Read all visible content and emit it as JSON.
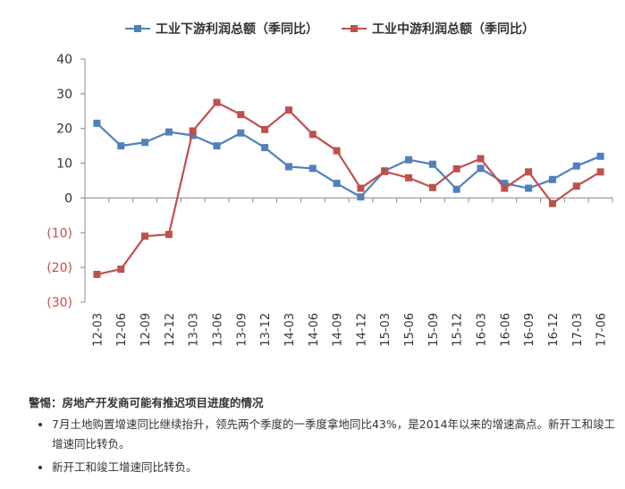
{
  "chart_data": {
    "type": "line",
    "categories": [
      "12-03",
      "12-06",
      "12-09",
      "12-12",
      "13-03",
      "13-06",
      "13-09",
      "13-12",
      "14-03",
      "14-06",
      "14-09",
      "14-12",
      "15-03",
      "15-06",
      "15-09",
      "15-12",
      "16-03",
      "16-06",
      "16-09",
      "16-12",
      "17-03",
      "17-06"
    ],
    "series": [
      {
        "name": "工业下游利润总额（季同比）",
        "color": "#4f81bd",
        "marker": "square",
        "values": [
          21.5,
          15,
          16,
          19,
          18,
          15,
          18.7,
          14.5,
          9,
          8.5,
          4.2,
          0.3,
          7.8,
          11,
          9.7,
          2.5,
          8.5,
          4.2,
          2.8,
          5.3,
          9.2,
          12
        ]
      },
      {
        "name": "工业中游利润总额（季同比）",
        "color": "#c0504d",
        "marker": "square",
        "values": [
          -22,
          -20.5,
          -11,
          -10.5,
          19.3,
          27.5,
          24,
          19.7,
          25.3,
          18.3,
          13.6,
          2.8,
          7.6,
          5.8,
          3,
          8.4,
          11.3,
          2.8,
          7.5,
          -1.6,
          3.4,
          7.5
        ]
      }
    ],
    "ylim": [
      -30,
      40
    ],
    "yticks": [
      40,
      30,
      20,
      10,
      0,
      -10,
      -20,
      -30
    ],
    "ytick_labels": [
      "40",
      "30",
      "20",
      "10",
      "0",
      "(10)",
      "(20)",
      "(30)"
    ],
    "negative_label_color": "#c0504d",
    "grid": false,
    "legend_position": "top"
  },
  "notes": {
    "title": "警惕：房地产开发商可能有推迟项目进度的情况",
    "bullets": [
      "7月土地购置增速同比继续抬升，领先两个季度的一季度拿地同比43%，是2014年以来的增速高点。新开工和竣工增速同比转负。",
      "新开工和竣工增速同比转负。"
    ]
  }
}
